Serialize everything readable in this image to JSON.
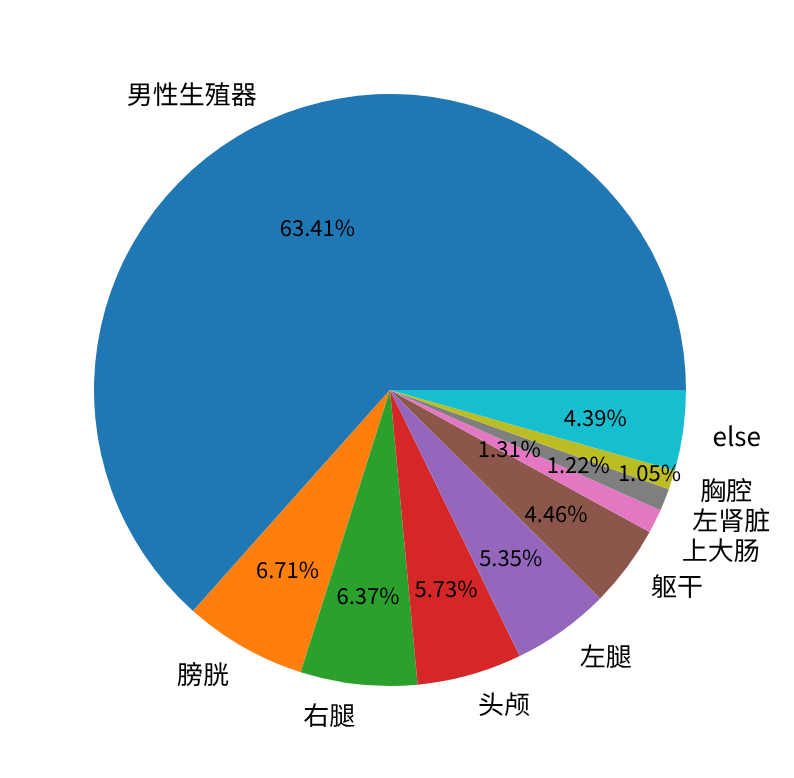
{
  "chart_data": {
    "type": "pie",
    "categories": [
      "男性生殖器",
      "膀胱",
      "右腿",
      "头颅",
      "左腿",
      "躯干",
      "上大肠",
      "左肾脏",
      "胸腔",
      "else"
    ],
    "values": [
      63.41,
      6.71,
      6.37,
      5.73,
      5.35,
      4.46,
      1.31,
      1.22,
      1.05,
      4.39
    ],
    "colors": [
      "#1f77b4",
      "#ff7f0e",
      "#2ca02c",
      "#d62728",
      "#9467bd",
      "#8c564b",
      "#e377c2",
      "#7f7f7f",
      "#bcbd22",
      "#17becf"
    ],
    "value_labels": [
      "63.41%",
      "6.71%",
      "6.37%",
      "5.73%",
      "5.35%",
      "4.46%",
      "1.31%",
      "1.22%",
      "1.05%",
      "4.39%"
    ]
  }
}
